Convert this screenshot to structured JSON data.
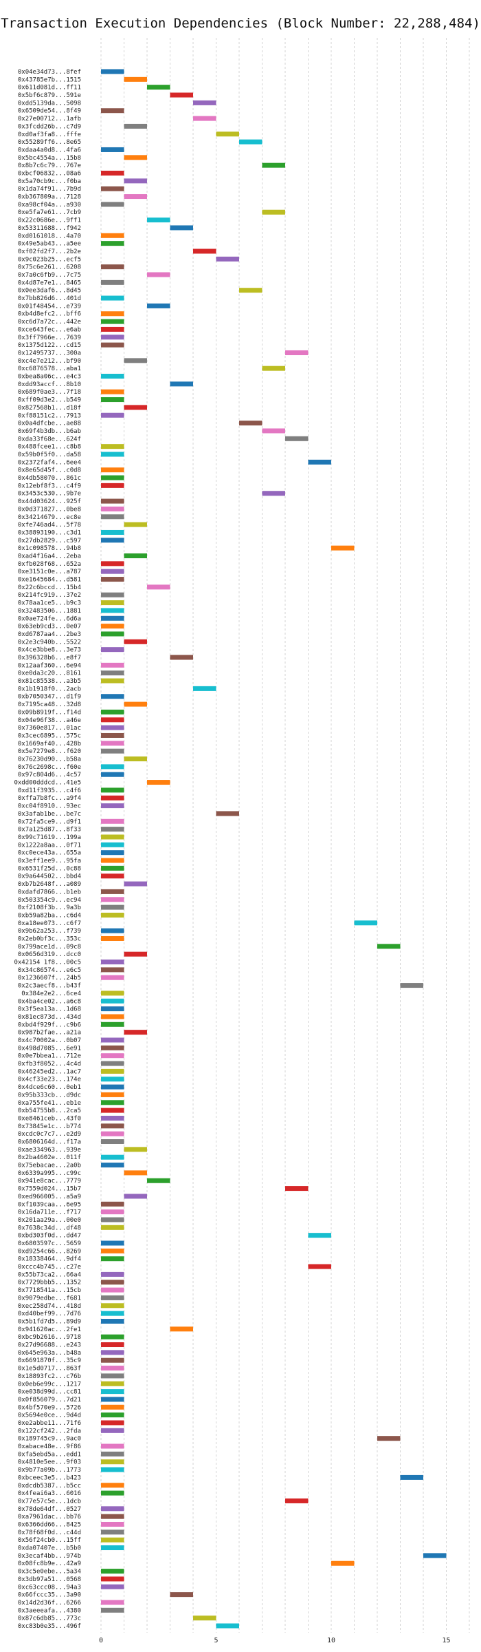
{
  "chart_data": {
    "type": "bar",
    "orientation": "horizontal",
    "title": "Transaction Execution Dependencies (Block Number: 22,288,484)",
    "xlabel": "",
    "ylabel": "",
    "xlim": [
      0,
      16
    ],
    "xticks": [
      0,
      5,
      10,
      15
    ],
    "grid": "vertical dashed",
    "legend": "none",
    "palette": [
      "#1f77b4",
      "#ff7f0e",
      "#2ca02c",
      "#d62728",
      "#9467bd",
      "#8c564b",
      "#e377c2",
      "#7f7f7f",
      "#bcbd22",
      "#17becf"
    ],
    "transactions": [
      {
        "label": "0x04e34d73...8fef",
        "start": 0,
        "end": 1
      },
      {
        "label": "0x43785e7b...1515",
        "start": 1,
        "end": 2
      },
      {
        "label": "0x611d081d...ff11",
        "start": 2,
        "end": 3
      },
      {
        "label": "0x5bf6c879...591e",
        "start": 3,
        "end": 4
      },
      {
        "label": "0xdd5139da...5098",
        "start": 4,
        "end": 5
      },
      {
        "label": "0x6509de54...8f49",
        "start": 0,
        "end": 1
      },
      {
        "label": "0x27e00712...1afb",
        "start": 4,
        "end": 5
      },
      {
        "label": "0x3fcdd26b...c7d9",
        "start": 1,
        "end": 2
      },
      {
        "label": "0xd0af3fa8...fffe",
        "start": 5,
        "end": 6
      },
      {
        "label": "0x55289ff6...8e65",
        "start": 6,
        "end": 7
      },
      {
        "label": "0xdaa4a0d8...4fa6",
        "start": 0,
        "end": 1
      },
      {
        "label": "0x5bc4554a...15b8",
        "start": 1,
        "end": 2
      },
      {
        "label": "0x8b7c6c79...767e",
        "start": 7,
        "end": 8
      },
      {
        "label": "0xbcf06832...08a6",
        "start": 0,
        "end": 1
      },
      {
        "label": "0x5a70cb9c...f0ba",
        "start": 1,
        "end": 2
      },
      {
        "label": "0x1da74f91...7b9d",
        "start": 0,
        "end": 1
      },
      {
        "label": "0xb367809a...7128",
        "start": 1,
        "end": 2
      },
      {
        "label": "0xa98cf04a...a930",
        "start": 0,
        "end": 1
      },
      {
        "label": "0xe5fa7e61...7cb9",
        "start": 7,
        "end": 8
      },
      {
        "label": "0x22c0686e...9ff1",
        "start": 2,
        "end": 3
      },
      {
        "label": "0x53311688...f942",
        "start": 3,
        "end": 4
      },
      {
        "label": "0xd0161018...4a70",
        "start": 0,
        "end": 1
      },
      {
        "label": "0x49e5ab43...a5ee",
        "start": 0,
        "end": 1
      },
      {
        "label": "0xf02fd2f7...2b2e",
        "start": 4,
        "end": 5
      },
      {
        "label": "0x9c023b25...ecf5",
        "start": 5,
        "end": 6
      },
      {
        "label": "0x75c6e261...6208",
        "start": 0,
        "end": 1
      },
      {
        "label": "0x7a0c6fb9...7c75",
        "start": 2,
        "end": 3
      },
      {
        "label": "0x4d87e7e1...8465",
        "start": 0,
        "end": 1
      },
      {
        "label": "0x0ee3daf6...8d45",
        "start": 6,
        "end": 7
      },
      {
        "label": "0x7bb826d6...401d",
        "start": 0,
        "end": 1
      },
      {
        "label": "0x01f48454...e739",
        "start": 2,
        "end": 3
      },
      {
        "label": "0xb4d8efc2...bff6",
        "start": 0,
        "end": 1
      },
      {
        "label": "0xc6d7a72c...442e",
        "start": 0,
        "end": 1
      },
      {
        "label": "0xce643fec...e6ab",
        "start": 0,
        "end": 1
      },
      {
        "label": "0x3ff7966e...7639",
        "start": 0,
        "end": 1
      },
      {
        "label": "0x1375d122...cd15",
        "start": 0,
        "end": 1
      },
      {
        "label": "0x12495737...300a",
        "start": 8,
        "end": 9
      },
      {
        "label": "0xc4e7e212...bf90",
        "start": 1,
        "end": 2
      },
      {
        "label": "0xc6876578...aba1",
        "start": 7,
        "end": 8
      },
      {
        "label": "0xbea8a06c...e4c3",
        "start": 0,
        "end": 1
      },
      {
        "label": "0xdd93accf...8b10",
        "start": 3,
        "end": 4
      },
      {
        "label": "0x689f0ae3...7f18",
        "start": 0,
        "end": 1
      },
      {
        "label": "0xff09d3e2...b549",
        "start": 0,
        "end": 1
      },
      {
        "label": "0x827568b1...d18f",
        "start": 1,
        "end": 2
      },
      {
        "label": "0xf88151c2...7913",
        "start": 0,
        "end": 1
      },
      {
        "label": "0x0a4dfcbe...ae88",
        "start": 6,
        "end": 7
      },
      {
        "label": "0x69f4b3db...b6ab",
        "start": 7,
        "end": 8
      },
      {
        "label": "0xda33f68e...624f",
        "start": 8,
        "end": 9
      },
      {
        "label": "0x488fcee1...c8b8",
        "start": 0,
        "end": 1
      },
      {
        "label": "0x59b0f5f0...da58",
        "start": 0,
        "end": 1
      },
      {
        "label": "0x2372faf4...6ee4",
        "start": 9,
        "end": 10
      },
      {
        "label": "0x8e65d45f...c0d8",
        "start": 0,
        "end": 1
      },
      {
        "label": "0x4db58070...861c",
        "start": 0,
        "end": 1
      },
      {
        "label": "0x12ebf8f3...c4f9",
        "start": 0,
        "end": 1
      },
      {
        "label": "0x3453c530...9b7e",
        "start": 7,
        "end": 8
      },
      {
        "label": "0x44d03624...925f",
        "start": 0,
        "end": 1
      },
      {
        "label": "0x0d371827...0be8",
        "start": 0,
        "end": 1
      },
      {
        "label": "0x34214679...ec8e",
        "start": 0,
        "end": 1
      },
      {
        "label": "0xfe746ad4...5f78",
        "start": 1,
        "end": 2
      },
      {
        "label": "0x38893190...c3d1",
        "start": 0,
        "end": 1
      },
      {
        "label": "0x27db2829...c597",
        "start": 0,
        "end": 1
      },
      {
        "label": "0x1c098578...94b8",
        "start": 10,
        "end": 11
      },
      {
        "label": "0xad4f16a4...2eba",
        "start": 1,
        "end": 2
      },
      {
        "label": "0xfb028f68...652a",
        "start": 0,
        "end": 1
      },
      {
        "label": "0xe3151c0e...a787",
        "start": 0,
        "end": 1
      },
      {
        "label": "0xe1645684...d581",
        "start": 0,
        "end": 1
      },
      {
        "label": "0x22c6bccd...15b4",
        "start": 2,
        "end": 3
      },
      {
        "label": "0x214fc919...37e2",
        "start": 0,
        "end": 1
      },
      {
        "label": "0x78aa1ce5...b9c3",
        "start": 0,
        "end": 1
      },
      {
        "label": "0x32483506...1881",
        "start": 0,
        "end": 1
      },
      {
        "label": "0x0ae724fe...6d6a",
        "start": 0,
        "end": 1
      },
      {
        "label": "0x63eb9cd3...0e07",
        "start": 0,
        "end": 1
      },
      {
        "label": "0xd6787aa4...2be3",
        "start": 0,
        "end": 1
      },
      {
        "label": "0x2e3c940b...5522",
        "start": 1,
        "end": 2
      },
      {
        "label": "0x4ce3bbe8...3e73",
        "start": 0,
        "end": 1
      },
      {
        "label": "0x396328b6...e8f7",
        "start": 3,
        "end": 4
      },
      {
        "label": "0x12aaf360...6e94",
        "start": 0,
        "end": 1
      },
      {
        "label": "0xe0da3c20...8161",
        "start": 0,
        "end": 1
      },
      {
        "label": "0x81c85538...a3b5",
        "start": 0,
        "end": 1
      },
      {
        "label": "0x1b1918f0...2acb",
        "start": 4,
        "end": 5
      },
      {
        "label": "0xb7050347...d1f9",
        "start": 0,
        "end": 1
      },
      {
        "label": "0x7195ca48...32d8",
        "start": 1,
        "end": 2
      },
      {
        "label": "0x09b8919f...f14d",
        "start": 0,
        "end": 1
      },
      {
        "label": "0x04e96f38...a46e",
        "start": 0,
        "end": 1
      },
      {
        "label": "0x7360e817...01ac",
        "start": 0,
        "end": 1
      },
      {
        "label": "0x3cec6895...575c",
        "start": 0,
        "end": 1
      },
      {
        "label": "0x1669af40...428b",
        "start": 0,
        "end": 1
      },
      {
        "label": "0x5e7279e8...f620",
        "start": 0,
        "end": 1
      },
      {
        "label": "0x76230d90...b58a",
        "start": 1,
        "end": 2
      },
      {
        "label": "0x76c2698c...f60e",
        "start": 0,
        "end": 1
      },
      {
        "label": "0x97c804d6...4c57",
        "start": 0,
        "end": 1
      },
      {
        "label": "0xdd00dddcd...41e5",
        "start": 2,
        "end": 3
      },
      {
        "label": "0xd11f3935...c4f6",
        "start": 0,
        "end": 1
      },
      {
        "label": "0xffa7b8fc...a9f4",
        "start": 0,
        "end": 1
      },
      {
        "label": "0xc04f8910...93ec",
        "start": 0,
        "end": 1
      },
      {
        "label": "0x3afab1be...be7c",
        "start": 5,
        "end": 6
      },
      {
        "label": "0x72fa5ce9...d9f1",
        "start": 0,
        "end": 1
      },
      {
        "label": "0x7a125d87...8f33",
        "start": 0,
        "end": 1
      },
      {
        "label": "0x99c71619...199a",
        "start": 0,
        "end": 1
      },
      {
        "label": "0x1222a8aa...0f71",
        "start": 0,
        "end": 1
      },
      {
        "label": "0xc0ece43a...655a",
        "start": 0,
        "end": 1
      },
      {
        "label": "0x3eff1ee9...95fa",
        "start": 0,
        "end": 1
      },
      {
        "label": "0x6531f25d...0c88",
        "start": 0,
        "end": 1
      },
      {
        "label": "0x9a644502...bbd4",
        "start": 0,
        "end": 1
      },
      {
        "label": "0xb7b2648f...a089",
        "start": 1,
        "end": 2
      },
      {
        "label": "0xdafd7866...b1eb",
        "start": 0,
        "end": 1
      },
      {
        "label": "0x503354c9...ec94",
        "start": 0,
        "end": 1
      },
      {
        "label": "0xf2108f3b...9a3b",
        "start": 0,
        "end": 1
      },
      {
        "label": "0xb59a82ba...c6d4",
        "start": 0,
        "end": 1
      },
      {
        "label": "0xa18ee073...c6f7",
        "start": 11,
        "end": 12
      },
      {
        "label": "0x9b62a253...f739",
        "start": 0,
        "end": 1
      },
      {
        "label": "0x2eb0bf3c...353c",
        "start": 0,
        "end": 1
      },
      {
        "label": "0x799ace1d...09c8",
        "start": 12,
        "end": 13
      },
      {
        "label": "0x0656d319...dcc0",
        "start": 1,
        "end": 2
      },
      {
        "label": "0x42154 1f8...00c5",
        "start": 0,
        "end": 1
      },
      {
        "label": "0x34c86574...e6c5",
        "start": 0,
        "end": 1
      },
      {
        "label": "0x1236607f...24b5",
        "start": 0,
        "end": 1
      },
      {
        "label": "0x2c3aecf8...b43f",
        "start": 13,
        "end": 14
      },
      {
        "label": "0x384e2e2...6ce4",
        "start": 0,
        "end": 1
      },
      {
        "label": "0x4ba4ce02...a6c8",
        "start": 0,
        "end": 1
      },
      {
        "label": "0x3f5ea13a...1d68",
        "start": 0,
        "end": 1
      },
      {
        "label": "0x81ec873d...434d",
        "start": 0,
        "end": 1
      },
      {
        "label": "0xbd4f929f...c9b6",
        "start": 0,
        "end": 1
      },
      {
        "label": "0x987b2fae...a21a",
        "start": 1,
        "end": 2
      },
      {
        "label": "0x4c70002a...0b07",
        "start": 0,
        "end": 1
      },
      {
        "label": "0x498d7085...6e91",
        "start": 0,
        "end": 1
      },
      {
        "label": "0x0e7bbea1...712e",
        "start": 0,
        "end": 1
      },
      {
        "label": "0xfb3f8052...4c4d",
        "start": 0,
        "end": 1
      },
      {
        "label": "0x46245ed2...1ac7",
        "start": 0,
        "end": 1
      },
      {
        "label": "0x4cf33e23...174e",
        "start": 0,
        "end": 1
      },
      {
        "label": "0x4dce6c60...0eb1",
        "start": 0,
        "end": 1
      },
      {
        "label": "0x95b333cb...d9dc",
        "start": 0,
        "end": 1
      },
      {
        "label": "0xa755fe41...eb1e",
        "start": 0,
        "end": 1
      },
      {
        "label": "0xb54755b8...2ca5",
        "start": 0,
        "end": 1
      },
      {
        "label": "0xe8461ceb...43f0",
        "start": 0,
        "end": 1
      },
      {
        "label": "0x73845e1c...b774",
        "start": 0,
        "end": 1
      },
      {
        "label": "0xcdc0c7c7...e2d9",
        "start": 0,
        "end": 1
      },
      {
        "label": "0x6806164d...f17a",
        "start": 0,
        "end": 1
      },
      {
        "label": "0xae334963...939e",
        "start": 1,
        "end": 2
      },
      {
        "label": "0x2ba4602e...011f",
        "start": 0,
        "end": 1
      },
      {
        "label": "0x75ebacae...2a0b",
        "start": 0,
        "end": 1
      },
      {
        "label": "0x6339a995...c99c",
        "start": 1,
        "end": 2
      },
      {
        "label": "0x941e8cac...7779",
        "start": 2,
        "end": 3
      },
      {
        "label": "0x7559d024...15b7",
        "start": 8,
        "end": 9
      },
      {
        "label": "0xed966005...a5a9",
        "start": 1,
        "end": 2
      },
      {
        "label": "0xf1039caa...6e95",
        "start": 0,
        "end": 1
      },
      {
        "label": "0x16da711e...f717",
        "start": 0,
        "end": 1
      },
      {
        "label": "0x201aa29a...00e0",
        "start": 0,
        "end": 1
      },
      {
        "label": "0x7638c34d...df48",
        "start": 0,
        "end": 1
      },
      {
        "label": "0xbd303f0d...dd47",
        "start": 9,
        "end": 10
      },
      {
        "label": "0x6803597c...5659",
        "start": 0,
        "end": 1
      },
      {
        "label": "0xd9254c66...8269",
        "start": 0,
        "end": 1
      },
      {
        "label": "0x18338464...9df4",
        "start": 0,
        "end": 1
      },
      {
        "label": "0xccc4b745...c27e",
        "start": 9,
        "end": 10
      },
      {
        "label": "0x55b73ca2...66a4",
        "start": 0,
        "end": 1
      },
      {
        "label": "0x7729bbb5...1352",
        "start": 0,
        "end": 1
      },
      {
        "label": "0x7718541a...15cb",
        "start": 0,
        "end": 1
      },
      {
        "label": "0x9079edbe...f681",
        "start": 0,
        "end": 1
      },
      {
        "label": "0xec258d74...418d",
        "start": 0,
        "end": 1
      },
      {
        "label": "0xd40bef99...7d76",
        "start": 0,
        "end": 1
      },
      {
        "label": "0x5b1fd7d5...89d9",
        "start": 0,
        "end": 1
      },
      {
        "label": "0x941620ac...2fe1",
        "start": 3,
        "end": 4
      },
      {
        "label": "0xbc9b2616...9718",
        "start": 0,
        "end": 1
      },
      {
        "label": "0x27d96688...e243",
        "start": 0,
        "end": 1
      },
      {
        "label": "0x645e963a...b48a",
        "start": 0,
        "end": 1
      },
      {
        "label": "0x6691870f...35c9",
        "start": 0,
        "end": 1
      },
      {
        "label": "0x1e5d0717...863f",
        "start": 0,
        "end": 1
      },
      {
        "label": "0x18893fc2...c76b",
        "start": 0,
        "end": 1
      },
      {
        "label": "0x0eb6e99c...1217",
        "start": 0,
        "end": 1
      },
      {
        "label": "0xe038d99d...cc81",
        "start": 0,
        "end": 1
      },
      {
        "label": "0x0f856079...7d21",
        "start": 0,
        "end": 1
      },
      {
        "label": "0x4bf570e9...5726",
        "start": 0,
        "end": 1
      },
      {
        "label": "0x5694e0ce...9d4d",
        "start": 0,
        "end": 1
      },
      {
        "label": "0xe2abbe11...71f6",
        "start": 0,
        "end": 1
      },
      {
        "label": "0x122cf242...2fda",
        "start": 0,
        "end": 1
      },
      {
        "label": "0x189745c9...9ac0",
        "start": 12,
        "end": 13
      },
      {
        "label": "0xabace48e...9f86",
        "start": 0,
        "end": 1
      },
      {
        "label": "0xfa5ebd5a...edd1",
        "start": 0,
        "end": 1
      },
      {
        "label": "0x4810e5ee...9f03",
        "start": 0,
        "end": 1
      },
      {
        "label": "0x9b77a09b...1773",
        "start": 0,
        "end": 1
      },
      {
        "label": "0xbceec3e5...b423",
        "start": 13,
        "end": 14
      },
      {
        "label": "0xdcdb5387...b5cc",
        "start": 0,
        "end": 1
      },
      {
        "label": "0x4feai6a3...6016",
        "start": 0,
        "end": 1
      },
      {
        "label": "0x77e57c5e...1dcb",
        "start": 8,
        "end": 9
      },
      {
        "label": "0x78de64df...0527",
        "start": 0,
        "end": 1
      },
      {
        "label": "0xa7961dac...bb76",
        "start": 0,
        "end": 1
      },
      {
        "label": "0x6366dd66...8425",
        "start": 0,
        "end": 1
      },
      {
        "label": "0x78f68f0d...c44d",
        "start": 0,
        "end": 1
      },
      {
        "label": "0x56f24cb0...15ff",
        "start": 0,
        "end": 1
      },
      {
        "label": "0xda07407e...b5b0",
        "start": 0,
        "end": 1
      },
      {
        "label": "0x3ecaf4bb...974b",
        "start": 14,
        "end": 15
      },
      {
        "label": "0x08fc8b9e...42a9",
        "start": 10,
        "end": 11
      },
      {
        "label": "0x3c5e0ebe...5a34",
        "start": 0,
        "end": 1
      },
      {
        "label": "0x3db97a51...0568",
        "start": 0,
        "end": 1
      },
      {
        "label": "0xc63ccc08...94a3",
        "start": 0,
        "end": 1
      },
      {
        "label": "0x66fccc35...3a90",
        "start": 3,
        "end": 4
      },
      {
        "label": "0x14d2d36f...6266",
        "start": 0,
        "end": 1
      },
      {
        "label": "0x3aeeeafa...4380",
        "start": 0,
        "end": 1
      },
      {
        "label": "0x87c6db85...773c",
        "start": 4,
        "end": 5
      },
      {
        "label": "0xc83b0e35...496f",
        "start": 5,
        "end": 6
      }
    ]
  }
}
